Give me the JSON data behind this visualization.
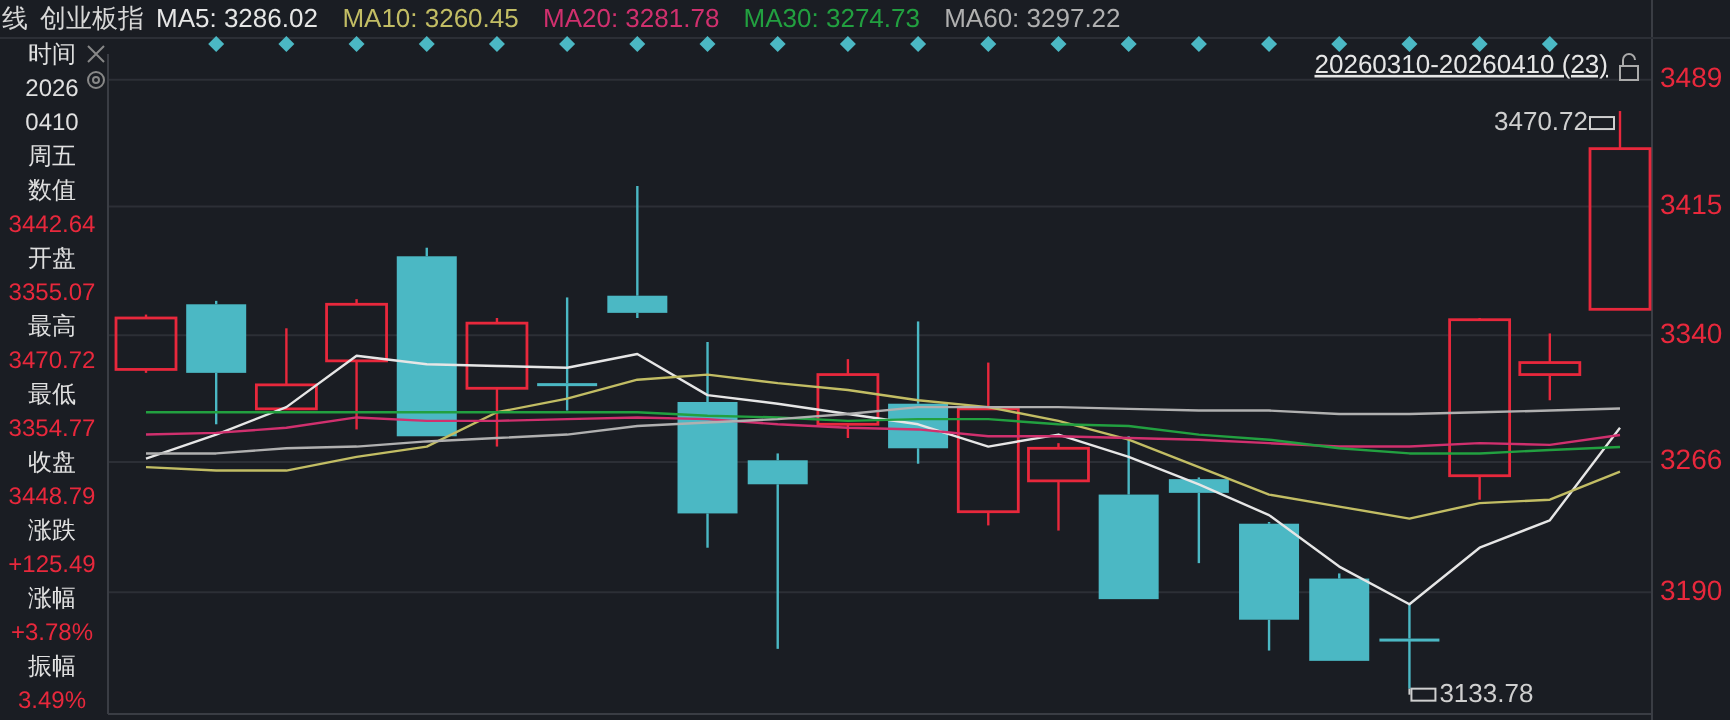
{
  "chart_data": {
    "type": "candlestick",
    "title": "创业板指",
    "subtitle": "线",
    "categories": [
      null,
      null,
      null,
      null,
      null,
      null,
      null,
      null,
      null,
      null,
      null,
      null,
      null,
      null,
      null,
      null,
      null,
      null,
      null,
      null,
      null,
      null
    ],
    "ohlc": [
      [
        3320,
        3352,
        3318,
        3350
      ],
      [
        3358,
        3360,
        3288,
        3318
      ],
      [
        3297,
        3344,
        3297,
        3311
      ],
      [
        3325,
        3361,
        3285,
        3358
      ],
      [
        3386,
        3391,
        3281,
        3281
      ],
      [
        3309,
        3350,
        3275,
        3347
      ],
      [
        3312,
        3362,
        3296,
        3311
      ],
      [
        3363,
        3427,
        3350,
        3353
      ],
      [
        3301,
        3336,
        3216,
        3236
      ],
      [
        3267,
        3271,
        3157,
        3253
      ],
      [
        3288,
        3326,
        3280,
        3317
      ],
      [
        3300,
        3348,
        3265,
        3274
      ],
      [
        3237,
        3324,
        3229,
        3297
      ],
      [
        3255,
        3277,
        3226,
        3274
      ],
      [
        3247,
        3281,
        3186,
        3186
      ],
      [
        3256,
        3257,
        3207,
        3248
      ],
      [
        3230,
        3231,
        3156,
        3174
      ],
      [
        3198,
        3201,
        3150,
        3150
      ],
      [
        3163,
        3183,
        3133.78,
        3162
      ],
      [
        3258,
        3350,
        3244,
        3349
      ],
      [
        3317,
        3341,
        3302,
        3324
      ],
      [
        3355.07,
        3470.72,
        3354.77,
        3448.79
      ]
    ],
    "series": [
      {
        "type": "line",
        "name": "MA5: 3286.02",
        "color": "#e6e6e6",
        "values": [
          3268,
          3282,
          3298,
          3328,
          3323,
          3322,
          3321,
          3329,
          3305,
          3300,
          3294,
          3288,
          3275,
          3282,
          3269,
          3253,
          3235,
          3205,
          3183,
          3216,
          3232,
          3286.02
        ]
      },
      {
        "type": "line",
        "name": "MA10: 3260.45",
        "color": "#c2bd64",
        "values": [
          3263,
          3261,
          3261,
          3269,
          3275,
          3295,
          3303,
          3314,
          3317,
          3312,
          3308,
          3302,
          3298,
          3290,
          3279,
          3263,
          3247,
          3240,
          3233,
          3242,
          3244,
          3260.45
        ]
      },
      {
        "type": "line",
        "name": "MA20: 3281.78",
        "color": "#d0306e",
        "values": [
          3282,
          3283,
          3286,
          3292,
          3290,
          3290,
          3291,
          3292,
          3291,
          3288,
          3286,
          3285,
          3281,
          3281,
          3280,
          3279,
          3277,
          3275,
          3275,
          3277,
          3276,
          3281.78
        ]
      },
      {
        "type": "line",
        "name": "MA30: 3274.73",
        "color": "#22a040",
        "values": [
          3295,
          3295,
          3295,
          3295,
          3295,
          3295,
          3295,
          3295,
          3293,
          3292,
          3290,
          3291,
          3291,
          3288,
          3287,
          3282,
          3279,
          3274,
          3271,
          3271,
          3273,
          3274.73
        ]
      },
      {
        "type": "line",
        "name": "MA60: 3297.22",
        "color": "#b0b0b0",
        "values": [
          3271,
          3271,
          3274,
          3275,
          3278,
          3280,
          3282,
          3287,
          3289,
          3291,
          3294,
          3298,
          3298,
          3298,
          3297,
          3296,
          3296,
          3294,
          3294,
          3295,
          3296,
          3297.22
        ]
      }
    ],
    "ylim": [
      3119,
      3504
    ],
    "yticks": [
      3190,
      3266,
      3340,
      3415,
      3489
    ],
    "grid": "y",
    "legend": "top",
    "tick_labels": "y",
    "annotations": [
      "时间",
      "2026",
      "0410",
      "周五",
      "数值",
      "3442.64",
      "开盘",
      "3355.07",
      "最高",
      "3470.72",
      "最低",
      "3354.77",
      "收盘",
      "3448.79",
      "涨跌",
      "+125.49",
      "涨幅",
      "+3.78%",
      "振幅",
      "3.49%",
      "20260310-20260410 (23)",
      "3470.72",
      "3133.78"
    ]
  }
}
